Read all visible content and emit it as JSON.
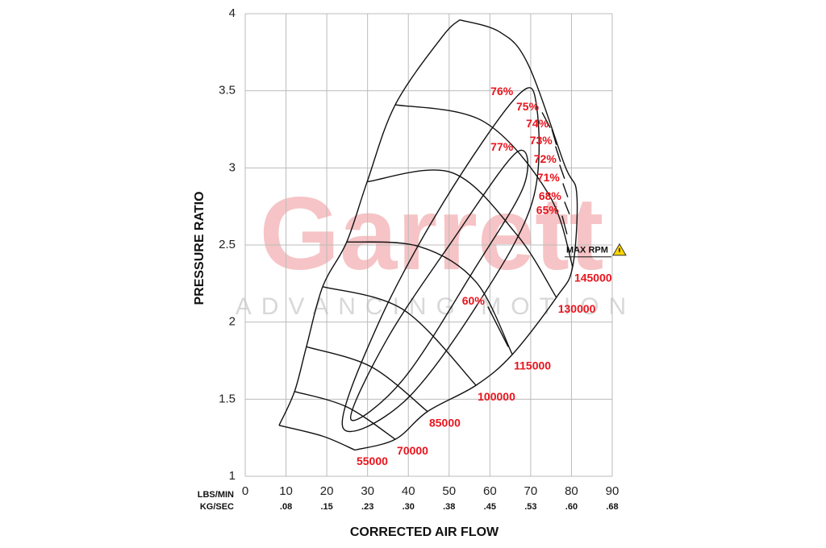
{
  "chart_data": {
    "type": "compressor-map",
    "x_label": "CORRECTED AIR FLOW",
    "y_label": "PRESSURE RATIO",
    "x_unit_label": "LBS/MIN",
    "x2_unit_label": "KG/SEC",
    "watermark": "Garrett",
    "watermark_sub": "ADVANCING MOTION",
    "max_rpm_label": "MAX RPM",
    "xlim": [
      0,
      90
    ],
    "xticks": [
      0,
      10,
      20,
      30,
      40,
      50,
      60,
      70,
      80,
      90
    ],
    "x2ticks": [
      {
        "value": 10,
        "label": ".08"
      },
      {
        "value": 20,
        "label": ".15"
      },
      {
        "value": 30,
        "label": ".23"
      },
      {
        "value": 40,
        "label": ".30"
      },
      {
        "value": 50,
        "label": ".38"
      },
      {
        "value": 60,
        "label": ".45"
      },
      {
        "value": 70,
        "label": ".53"
      },
      {
        "value": 80,
        "label": ".60"
      },
      {
        "value": 90,
        "label": ".68"
      }
    ],
    "ylim": [
      1,
      4
    ],
    "yticks": [
      1,
      1.5,
      2,
      2.5,
      3,
      3.5,
      4
    ],
    "grid": true,
    "line_color": "#111111",
    "label_color": "#e8141c",
    "surge_line": {
      "x": [
        8.3,
        12.1,
        15.0,
        19.0,
        24.9,
        29.9,
        36.8,
        48.3,
        52.6
      ],
      "y": [
        1.33,
        1.55,
        1.84,
        2.23,
        2.52,
        2.91,
        3.41,
        3.85,
        3.96
      ]
    },
    "choke_line": {
      "x": [
        26.9,
        36.8,
        44.7,
        56.6,
        65.5,
        76.3,
        80.3,
        81.3,
        78.3,
        69.4,
        62.5,
        52.6
      ],
      "y": [
        1.17,
        1.24,
        1.42,
        1.59,
        1.79,
        2.16,
        2.36,
        2.83,
        3.02,
        3.67,
        3.88,
        3.96
      ]
    },
    "speed_lines": [
      {
        "name": "55000",
        "x": [
          8.3,
          19.0,
          26.9
        ],
        "y": [
          1.33,
          1.26,
          1.17
        ]
      },
      {
        "name": "70000",
        "x": [
          12.1,
          24.9,
          36.8
        ],
        "y": [
          1.55,
          1.45,
          1.24
        ]
      },
      {
        "name": "85000",
        "x": [
          15.0,
          30.9,
          44.7
        ],
        "y": [
          1.84,
          1.71,
          1.42
        ]
      },
      {
        "name": "100000",
        "x": [
          19.0,
          38.8,
          56.6
        ],
        "y": [
          2.23,
          2.08,
          1.59
        ]
      },
      {
        "name": "115000",
        "x": [
          24.9,
          42.7,
          56.6,
          65.5
        ],
        "y": [
          2.52,
          2.49,
          2.26,
          1.79
        ]
      },
      {
        "name": "130000",
        "x": [
          29.9,
          50.6,
          66.5,
          76.3
        ],
        "y": [
          2.91,
          2.97,
          2.57,
          2.16
        ]
      },
      {
        "name": "145000",
        "x": [
          36.8,
          58.5,
          74.4,
          80.3
        ],
        "y": [
          3.41,
          3.3,
          2.83,
          2.36
        ]
      }
    ],
    "efficiency_islands": [
      {
        "name": "77%",
        "closed": true,
        "x": [
          25.9,
          34.8,
          50.6,
          66.5,
          68.4,
          56.6,
          38.8
        ],
        "y": [
          1.37,
          1.89,
          2.52,
          3.1,
          2.89,
          2.36,
          1.63
        ]
      },
      {
        "name": "76%",
        "closed": true,
        "x": [
          23.9,
          32.8,
          48.7,
          66.5,
          71.4,
          70.4,
          56.6,
          38.8
        ],
        "y": [
          1.32,
          2.0,
          2.78,
          3.46,
          3.41,
          2.78,
          2.1,
          1.48
        ]
      },
      {
        "name": "75%",
        "closed": false,
        "x": [
          72.8,
          74.8
        ],
        "y": [
          3.36,
          3.26
        ]
      },
      {
        "name": "74%",
        "closed": false,
        "x": [
          75.2,
          76.3
        ],
        "y": [
          3.25,
          3.15
        ]
      },
      {
        "name": "73%",
        "closed": false,
        "x": [
          76.1,
          77.3
        ],
        "y": [
          3.14,
          3.04
        ]
      },
      {
        "name": "72%",
        "closed": false,
        "x": [
          77.1,
          78.3
        ],
        "y": [
          3.02,
          2.93
        ]
      },
      {
        "name": "71%",
        "closed": false,
        "x": [
          77.9,
          79.1
        ],
        "y": [
          2.9,
          2.81
        ]
      },
      {
        "name": "68%",
        "closed": false,
        "x": [
          78.3,
          79.5
        ],
        "y": [
          2.78,
          2.7
        ]
      },
      {
        "name": "65%",
        "closed": false,
        "x": [
          77.7,
          78.9
        ],
        "y": [
          2.69,
          2.57
        ]
      },
      {
        "name": "60%",
        "closed": false,
        "x": [
          59.5,
          64.5
        ],
        "y": [
          2.1,
          1.84
        ]
      }
    ]
  }
}
